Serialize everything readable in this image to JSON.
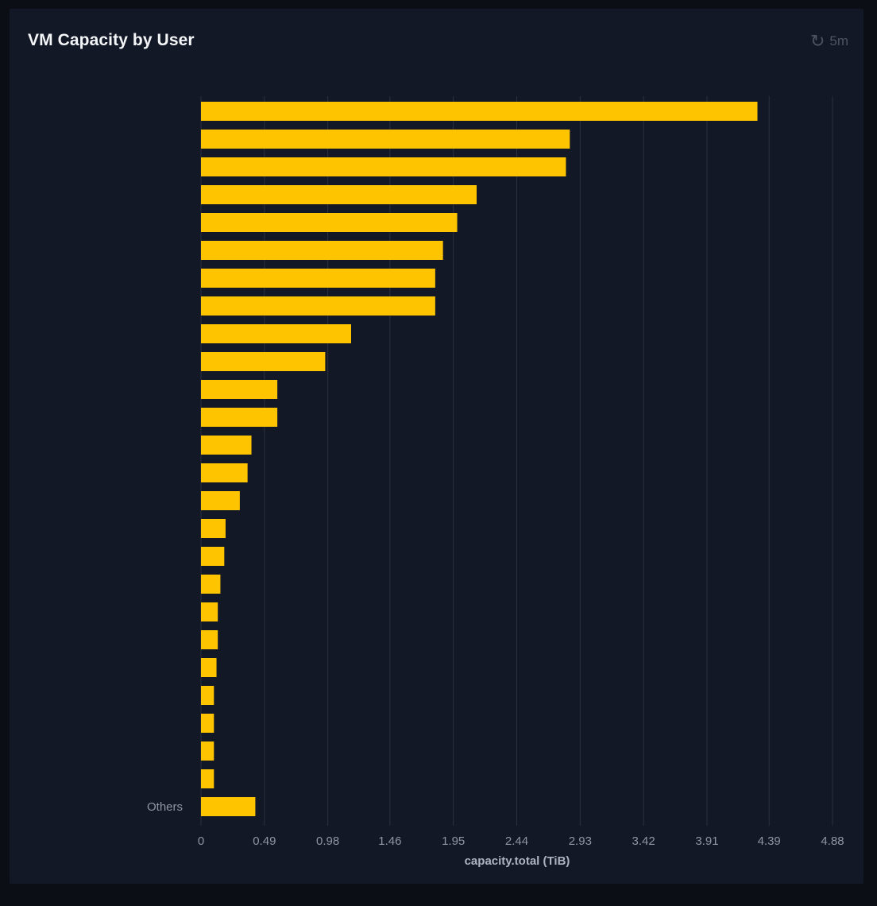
{
  "panel": {
    "title": "VM Capacity by User",
    "refresh": {
      "icon": "refresh-icon",
      "interval_label": "5m"
    }
  },
  "chart_data": {
    "type": "bar",
    "orientation": "horizontal",
    "categories": [
      "",
      "",
      "",
      "",
      "",
      "",
      "",
      "",
      "",
      "",
      "",
      "",
      "",
      "",
      "",
      "",
      "",
      "",
      "",
      "",
      "",
      "",
      "",
      "",
      "",
      "Others"
    ],
    "values": [
      4.3,
      2.85,
      2.82,
      2.13,
      1.98,
      1.87,
      1.81,
      1.81,
      1.16,
      0.96,
      0.59,
      0.59,
      0.39,
      0.36,
      0.3,
      0.19,
      0.18,
      0.15,
      0.13,
      0.13,
      0.12,
      0.1,
      0.1,
      0.1,
      0.1,
      0.42
    ],
    "xticks": [
      "0",
      "0.49",
      "0.98",
      "1.46",
      "1.95",
      "2.44",
      "2.93",
      "3.42",
      "3.91",
      "4.39",
      "4.88"
    ],
    "xlim": [
      0,
      4.88
    ],
    "xlabel": "capacity.total (TiB)",
    "grid": true,
    "bar_color": "#ffc400",
    "grid_color": "#2b313d"
  }
}
